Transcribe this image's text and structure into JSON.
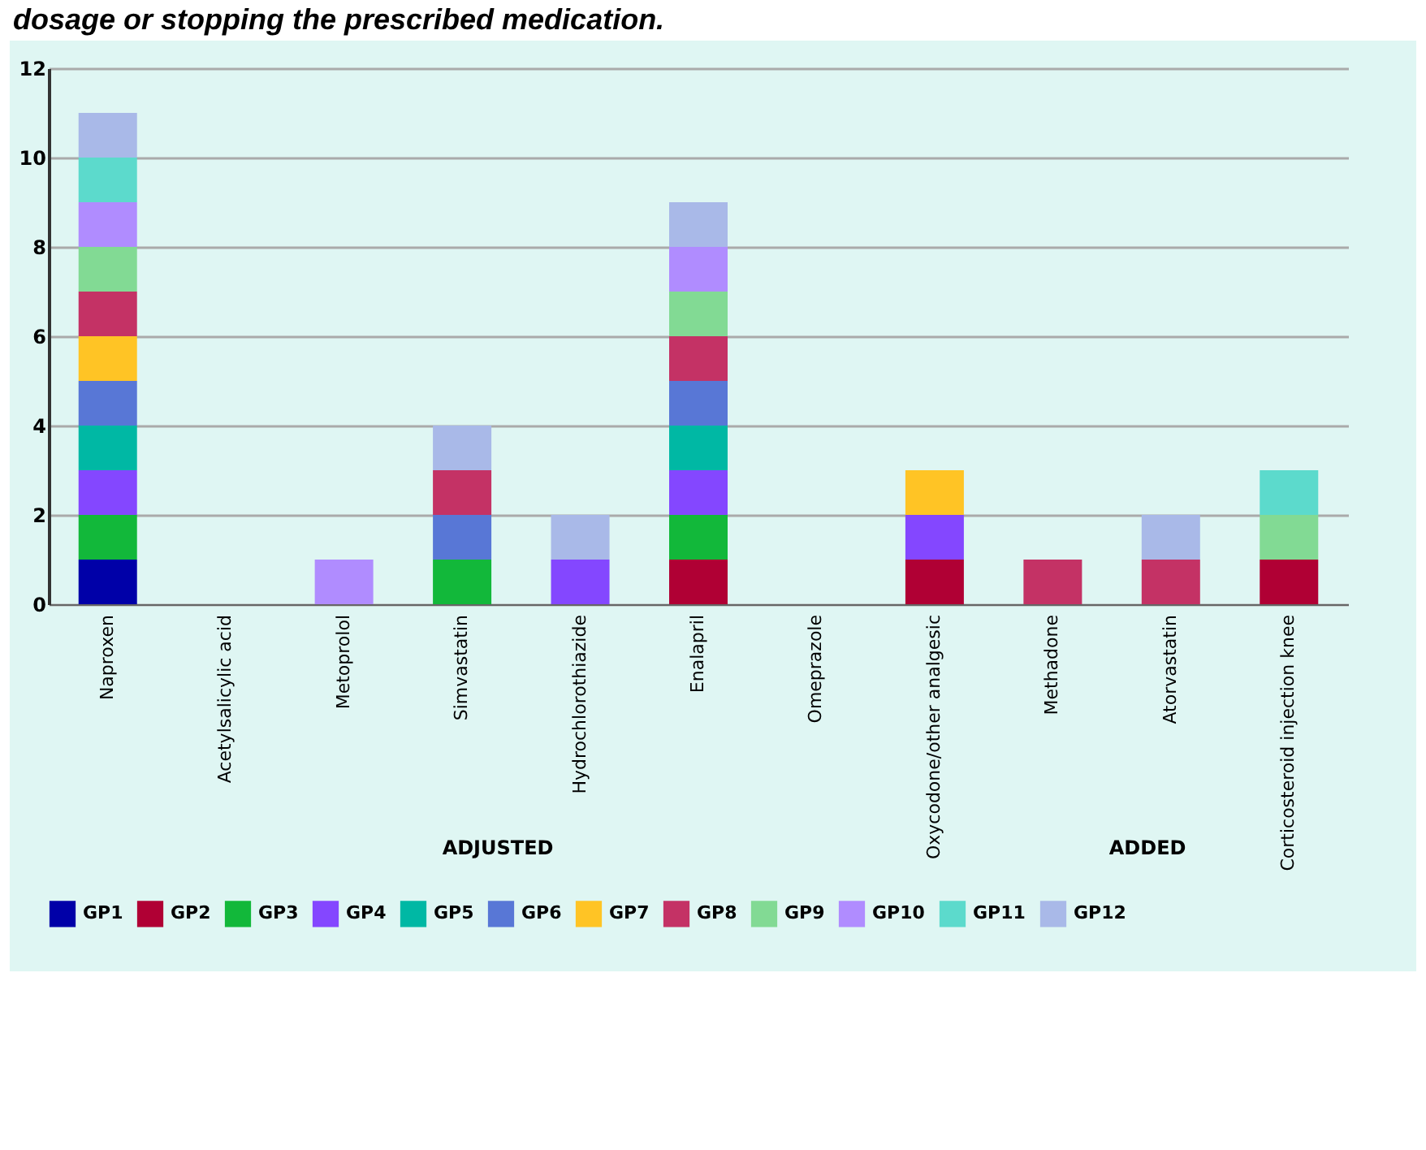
{
  "chart_data": {
    "type": "bar",
    "stacked": true,
    "title": "dosage or stopping the prescribed medication.",
    "categories": [
      "Naproxen",
      "Acetylsalicylic acid",
      "Metoprolol",
      "Simvastatin",
      "Hydrochlorothiazide",
      "Enalapril",
      "Omeprazole",
      "Oxycodone/other analgesic",
      "Methadone",
      "Atorvastatin",
      "Corticosteroid injection knee"
    ],
    "series": [
      {
        "name": "GP1",
        "color": "#0000a8",
        "values": [
          1,
          null,
          null,
          null,
          null,
          null,
          null,
          null,
          null,
          null,
          null
        ]
      },
      {
        "name": "GP2",
        "color": "#b00034",
        "values": [
          null,
          null,
          null,
          null,
          null,
          1,
          null,
          1,
          null,
          null,
          1
        ]
      },
      {
        "name": "GP3",
        "color": "#12b83a",
        "values": [
          1,
          null,
          null,
          1,
          null,
          1,
          null,
          null,
          null,
          null,
          null
        ]
      },
      {
        "name": "GP4",
        "color": "#8447ff",
        "values": [
          1,
          null,
          null,
          null,
          1,
          1,
          null,
          1,
          null,
          null,
          null
        ]
      },
      {
        "name": "GP5",
        "color": "#00b8a4",
        "values": [
          1,
          null,
          null,
          null,
          null,
          1,
          null,
          null,
          null,
          null,
          null
        ]
      },
      {
        "name": "GP6",
        "color": "#5877d6",
        "values": [
          1,
          null,
          null,
          1,
          null,
          1,
          null,
          null,
          null,
          null,
          null
        ]
      },
      {
        "name": "GP7",
        "color": "#ffc425",
        "values": [
          1,
          null,
          null,
          null,
          null,
          null,
          null,
          1,
          null,
          null,
          null
        ]
      },
      {
        "name": "GP8",
        "color": "#c43265",
        "values": [
          1,
          null,
          null,
          1,
          null,
          1,
          null,
          null,
          1,
          1,
          null
        ]
      },
      {
        "name": "GP9",
        "color": "#82da94",
        "values": [
          1,
          null,
          null,
          null,
          null,
          1,
          null,
          null,
          null,
          null,
          1
        ]
      },
      {
        "name": "GP10",
        "color": "#b08cff",
        "values": [
          1,
          null,
          1,
          null,
          null,
          1,
          null,
          null,
          null,
          null,
          null
        ]
      },
      {
        "name": "GP11",
        "color": "#5cdacc",
        "values": [
          1,
          null,
          null,
          null,
          null,
          null,
          null,
          null,
          null,
          null,
          1
        ]
      },
      {
        "name": "GP12",
        "color": "#a9b9e8",
        "values": [
          1,
          null,
          null,
          1,
          1,
          1,
          null,
          null,
          null,
          1,
          null
        ]
      }
    ],
    "ylim": [
      0,
      12
    ],
    "yticks": [
      0,
      2,
      4,
      6,
      8,
      10,
      12
    ],
    "grid": "y",
    "legend": "bottom",
    "annotations": [
      "ADJUSTED",
      "ADDED"
    ]
  }
}
